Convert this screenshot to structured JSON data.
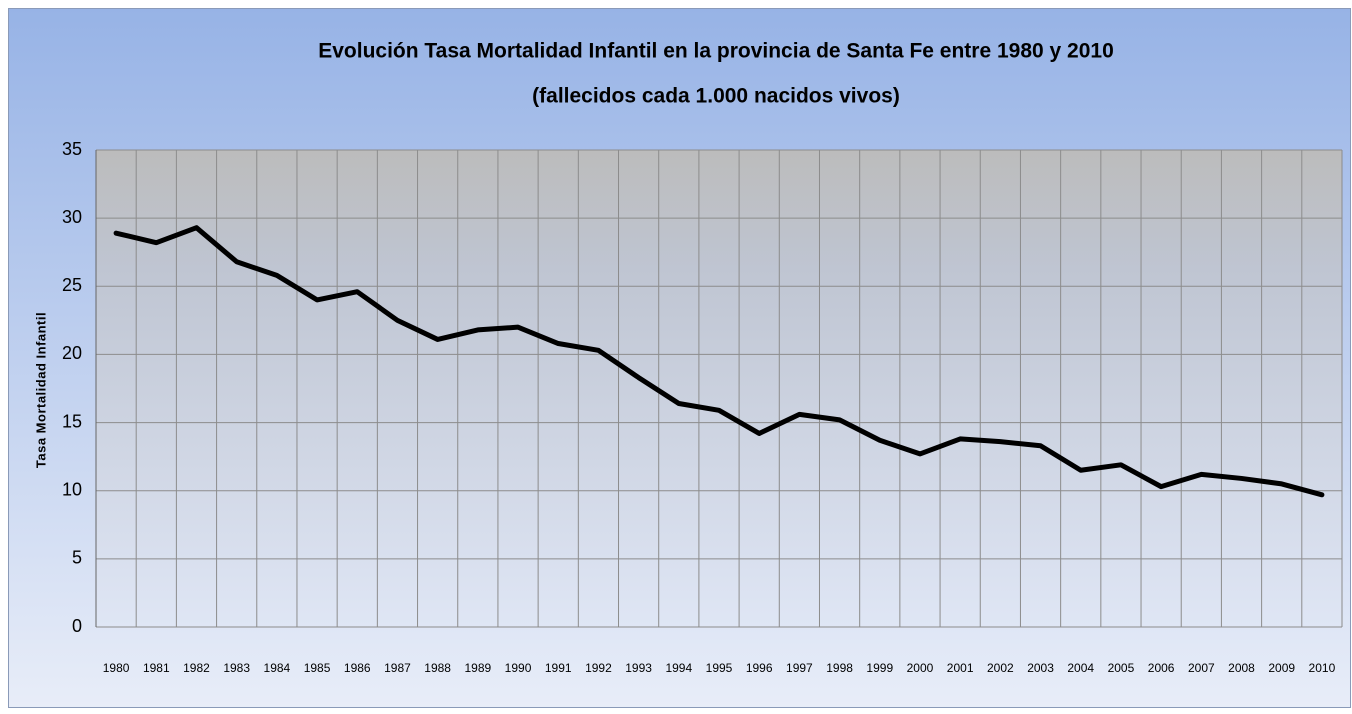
{
  "chart_data": {
    "type": "line",
    "title": "Evolución Tasa Mortalidad Infantil en la provincia de Santa Fe entre 1980 y 2010",
    "subtitle": "(fallecidos cada 1.000 nacidos vivos)",
    "y_label": "Tasa Mortalidad Infantil",
    "categories": [
      "1980",
      "1981",
      "1982",
      "1983",
      "1984",
      "1985",
      "1986",
      "1987",
      "1988",
      "1989",
      "1990",
      "1991",
      "1992",
      "1993",
      "1994",
      "1995",
      "1996",
      "1997",
      "1998",
      "1999",
      "2000",
      "2001",
      "2002",
      "2003",
      "2004",
      "2005",
      "2006",
      "2007",
      "2008",
      "2009",
      "2010"
    ],
    "series": [
      {
        "name": "Tasa Mortalidad Infantil",
        "color": "#000000",
        "values": [
          28.9,
          28.2,
          29.3,
          26.8,
          25.8,
          24.0,
          24.6,
          22.5,
          21.1,
          21.8,
          22.0,
          20.8,
          20.3,
          18.3,
          16.4,
          15.9,
          14.2,
          15.6,
          15.2,
          13.7,
          12.7,
          13.8,
          13.6,
          13.3,
          11.5,
          11.9,
          10.3,
          11.2,
          10.9,
          10.5,
          9.7
        ]
      }
    ],
    "ylim": [
      0,
      35
    ],
    "yticks": [
      0,
      5,
      10,
      15,
      20,
      25,
      30,
      35
    ],
    "grid": true
  }
}
